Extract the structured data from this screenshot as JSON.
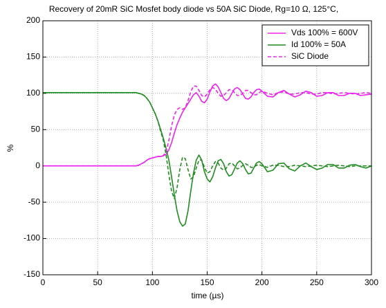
{
  "chart_data": {
    "type": "line",
    "title": "Recovery of 20mR SiC Mosfet body diode vs 50A SiC Diode, Rg=10 Ω, 125°C,",
    "x_label": "time (µs)",
    "y_label": "%",
    "xlim": [
      0,
      300
    ],
    "ylim": [
      -150,
      200
    ],
    "xticks": [
      0,
      50,
      100,
      150,
      200,
      250,
      300
    ],
    "yticks": [
      -150,
      -100,
      -50,
      0,
      50,
      100,
      150,
      200
    ],
    "grid": true,
    "legend": "upper right",
    "x": [
      0,
      40,
      80,
      82.5,
      85,
      87.5,
      90,
      92.5,
      95,
      97.5,
      100,
      102.5,
      105,
      107.5,
      110,
      112.5,
      115,
      117.5,
      120,
      122.5,
      125,
      127.5,
      130,
      132.5,
      135,
      137.5,
      140,
      142.5,
      145,
      147.5,
      150,
      152.5,
      155,
      157.5,
      160,
      162.5,
      165,
      167.5,
      170,
      172.5,
      175,
      177.5,
      180,
      182.5,
      185,
      187.5,
      190,
      192.5,
      195,
      197.5,
      200,
      205,
      210,
      215,
      220,
      225,
      230,
      235,
      240,
      245,
      250,
      255,
      260,
      265,
      270,
      275,
      280,
      285,
      290,
      295,
      300
    ],
    "series": [
      {
        "name": "Vds 100% = 600V",
        "color": "#ee22ee",
        "linestyle": "solid",
        "values": [
          0,
          0,
          0,
          0,
          0,
          1,
          3,
          5,
          8,
          10,
          11,
          12,
          13,
          13,
          14,
          16,
          22,
          32,
          45,
          57,
          66,
          74,
          80,
          86,
          92,
          98,
          101,
          96,
          89,
          87,
          92,
          102,
          110,
          113,
          109,
          101,
          93,
          90,
          93,
          100,
          106,
          108,
          105,
          99,
          93,
          92,
          95,
          101,
          105,
          106,
          103,
          96,
          95,
          101,
          104,
          99,
          95,
          98,
          103,
          101,
          96,
          97,
          101,
          101,
          97,
          97,
          100,
          100,
          97,
          98,
          99
        ]
      },
      {
        "name": "Id 100% = 50A",
        "color": "#1e8c1e",
        "linestyle": "solid",
        "values": [
          101,
          101,
          101,
          101,
          101,
          100,
          99,
          97,
          93,
          88,
          80,
          72,
          62,
          50,
          38,
          24,
          8,
          -15,
          -40,
          -62,
          -77,
          -83,
          -80,
          -62,
          -35,
          -10,
          8,
          15,
          8,
          -8,
          -18,
          -22,
          -15,
          -3,
          7,
          9,
          3,
          -8,
          -14,
          -12,
          -4,
          4,
          7,
          3,
          -5,
          -11,
          -10,
          -3,
          4,
          6,
          3,
          -8,
          -6,
          3,
          4,
          -4,
          -7,
          0,
          4,
          -1,
          -5,
          -3,
          2,
          2,
          -3,
          -3,
          1,
          2,
          -1,
          -3,
          0
        ]
      },
      {
        "name": "SiC Diode",
        "color": "#ee22ee",
        "linestyle": "dashed",
        "values": [
          0,
          0,
          0,
          0,
          0,
          1,
          3,
          5,
          8,
          10,
          11,
          12,
          13,
          13,
          14,
          20,
          35,
          55,
          70,
          78,
          80,
          78,
          80,
          90,
          102,
          110,
          110,
          104,
          97,
          95,
          99,
          105,
          108,
          106,
          100,
          96,
          97,
          101,
          105,
          105,
          101,
          97,
          97,
          100,
          104,
          104,
          101,
          98,
          98,
          101,
          103,
          100,
          98,
          101,
          102,
          99,
          99,
          101,
          101,
          99,
          99,
          101,
          101,
          99,
          100,
          101,
          100,
          99,
          100,
          101,
          100
        ]
      },
      {
        "color": "#1e8c1e",
        "linestyle": "dashed",
        "values": [
          101,
          101,
          101,
          101,
          101,
          100,
          99,
          97,
          93,
          88,
          80,
          72,
          62,
          48,
          35,
          15,
          -12,
          -35,
          -45,
          -30,
          -5,
          12,
          10,
          -5,
          -18,
          -15,
          -3,
          8,
          8,
          -2,
          -10,
          -8,
          0,
          6,
          4,
          -3,
          -6,
          -3,
          3,
          4,
          0,
          -4,
          -3,
          1,
          3,
          1,
          -2,
          -2,
          1,
          2,
          0,
          -2,
          1,
          1,
          -1,
          -1,
          1,
          0,
          -1,
          0,
          1,
          0,
          -1,
          0,
          1,
          0,
          -1,
          0,
          0,
          0,
          0
        ]
      }
    ]
  }
}
